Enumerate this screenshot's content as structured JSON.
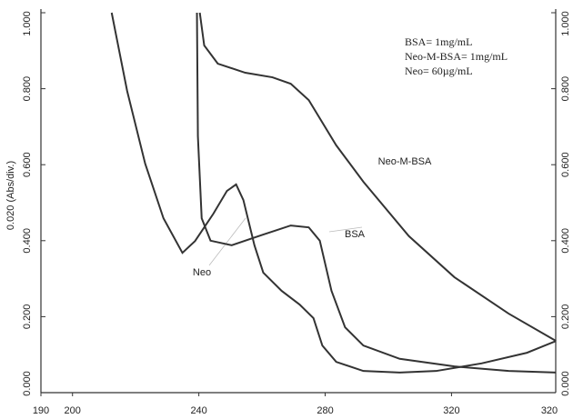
{
  "chart_data": {
    "type": "line",
    "ylabel": "0.020 (Abs/div.)",
    "xlim": [
      190,
      353
    ],
    "xticks": [
      190,
      200,
      240,
      280,
      320
    ],
    "ylim": [
      0,
      1
    ],
    "yticks": [
      {
        "value": 0,
        "label": "0.000"
      },
      {
        "value": 0.2,
        "label": "0.200"
      },
      {
        "value": 0.4,
        "label": "0.400"
      },
      {
        "value": 0.6,
        "label": "0.600"
      },
      {
        "value": 0.8,
        "label": "0.800"
      },
      {
        "value": 1,
        "label": "1.000"
      }
    ],
    "annotations": [
      "BSA= 1mg/mL",
      "Neo-M-BSA= 1mg/mL",
      "Neo= 60µg/mL",
      "320"
    ],
    "series": [
      {
        "name": "Neo",
        "color": "#333333",
        "x": [
          212.4,
          217.3,
          223.0,
          228.8,
          234.8,
          238.8,
          244.6,
          248.9,
          251.8,
          254.1,
          257.6,
          260.4,
          266.2,
          271.9,
          276.3,
          279.1,
          283.5,
          292.1,
          303.6,
          315.1,
          329.5,
          343.9,
          353.1
        ],
        "values": [
          1.0,
          0.794,
          0.603,
          0.459,
          0.368,
          0.399,
          0.471,
          0.531,
          0.548,
          0.507,
          0.388,
          0.316,
          0.268,
          0.232,
          0.196,
          0.124,
          0.081,
          0.057,
          0.053,
          0.057,
          0.077,
          0.105,
          0.136
        ]
      },
      {
        "name": "BSA",
        "color": "#333333",
        "x": [
          239.4,
          239.7,
          240.9,
          243.7,
          250.4,
          260.4,
          269.1,
          274.8,
          278.3,
          282.0,
          286.3,
          292.1,
          303.6,
          320.9,
          338.1,
          353.1
        ],
        "values": [
          1.0,
          0.675,
          0.459,
          0.4,
          0.388,
          0.416,
          0.44,
          0.435,
          0.4,
          0.268,
          0.172,
          0.124,
          0.089,
          0.069,
          0.057,
          0.053
        ]
      },
      {
        "name": "Neo-M-BSA",
        "color": "#333333",
        "x": [
          240.3,
          241.7,
          246.0,
          254.7,
          263.3,
          269.1,
          274.8,
          283.5,
          292.1,
          306.5,
          320.9,
          338.1,
          353.1
        ],
        "values": [
          1.0,
          0.914,
          0.866,
          0.842,
          0.83,
          0.813,
          0.77,
          0.651,
          0.555,
          0.412,
          0.304,
          0.208,
          0.136
        ]
      }
    ]
  }
}
